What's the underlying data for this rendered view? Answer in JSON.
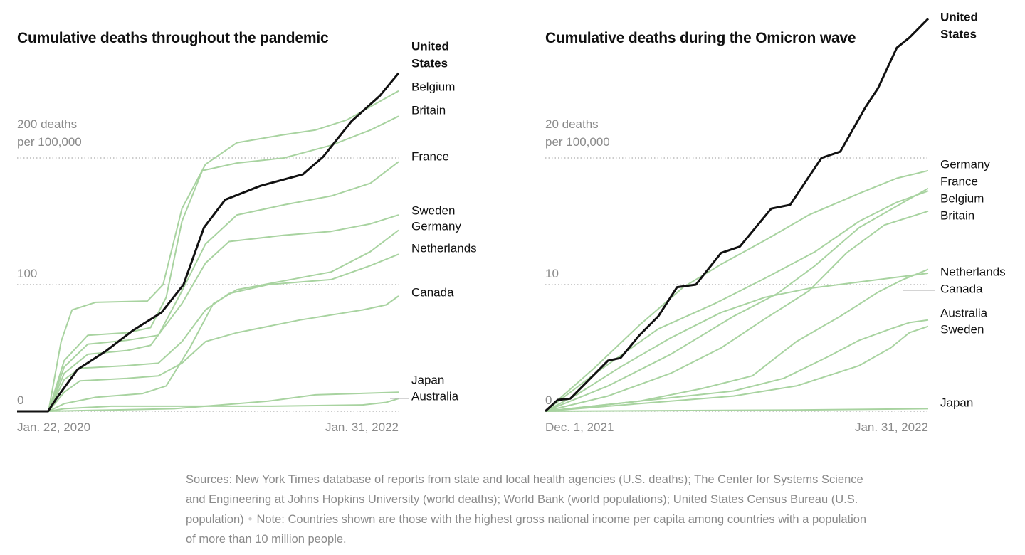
{
  "colors": {
    "highlight": "#111111",
    "others": "#a8d3a0",
    "grid": "#bbbbbb",
    "axis_text": "#8a8a8a"
  },
  "chart_data": [
    {
      "type": "line",
      "title": "Cumulative deaths throughout the pandemic",
      "ylabel": "deaths per 100,000",
      "x_unit": "months since Jan. 22, 2020",
      "xlim": [
        0,
        24.3
      ],
      "ylim": [
        0,
        270
      ],
      "x_tick_labels": [
        "Jan. 22, 2020",
        "Jan. 31, 2022"
      ],
      "y_ticks": [
        {
          "value": 0,
          "label": "0"
        },
        {
          "value": 100,
          "label": "100"
        },
        {
          "value": 200,
          "label": "200 deaths",
          "label2": "per 100,000"
        }
      ],
      "grid": "dotted horizontal",
      "series": [
        {
          "name": "Japan",
          "points": [
            [
              0,
              0
            ],
            [
              2,
              0
            ],
            [
              6,
              1
            ],
            [
              10,
              2
            ],
            [
              13,
              5
            ],
            [
              16,
              8
            ],
            [
              19,
              13
            ],
            [
              24.3,
              15
            ]
          ]
        },
        {
          "name": "Australia",
          "points": [
            [
              0,
              0
            ],
            [
              2,
              0
            ],
            [
              3,
              2
            ],
            [
              6,
              4
            ],
            [
              10,
              4
            ],
            [
              16,
              4
            ],
            [
              22,
              5
            ],
            [
              23.5,
              7
            ],
            [
              24.3,
              10
            ]
          ]
        },
        {
          "name": "Canada",
          "points": [
            [
              0,
              0
            ],
            [
              2,
              0
            ],
            [
              3,
              15
            ],
            [
              4,
              24
            ],
            [
              7,
              26
            ],
            [
              9,
              28
            ],
            [
              10.5,
              38
            ],
            [
              12,
              55
            ],
            [
              14,
              62
            ],
            [
              18,
              72
            ],
            [
              22,
              80
            ],
            [
              23.5,
              84
            ],
            [
              24.3,
              91
            ]
          ]
        },
        {
          "name": "Netherlands",
          "points": [
            [
              0,
              0
            ],
            [
              2,
              0
            ],
            [
              3,
              25
            ],
            [
              4,
              34
            ],
            [
              7,
              36
            ],
            [
              9,
              38
            ],
            [
              10.5,
              55
            ],
            [
              12,
              80
            ],
            [
              13.5,
              93
            ],
            [
              16,
              100
            ],
            [
              20,
              104
            ],
            [
              22.5,
              115
            ],
            [
              24.3,
              124
            ]
          ]
        },
        {
          "name": "Germany",
          "points": [
            [
              0,
              0
            ],
            [
              2,
              0
            ],
            [
              3,
              6
            ],
            [
              5,
              11
            ],
            [
              8,
              14
            ],
            [
              9.5,
              20
            ],
            [
              11,
              50
            ],
            [
              12.5,
              85
            ],
            [
              14,
              96
            ],
            [
              17,
              103
            ],
            [
              20,
              110
            ],
            [
              22.5,
              126
            ],
            [
              24.3,
              143
            ]
          ]
        },
        {
          "name": "Sweden",
          "points": [
            [
              0,
              0
            ],
            [
              2,
              0
            ],
            [
              3,
              30
            ],
            [
              4.5,
              45
            ],
            [
              7,
              48
            ],
            [
              8.5,
              52
            ],
            [
              10.5,
              85
            ],
            [
              12,
              117
            ],
            [
              13.5,
              134
            ],
            [
              17,
              139
            ],
            [
              20,
              142
            ],
            [
              22.5,
              148
            ],
            [
              24.3,
              155
            ]
          ]
        },
        {
          "name": "France",
          "points": [
            [
              0,
              0
            ],
            [
              2,
              0
            ],
            [
              3,
              35
            ],
            [
              4.5,
              53
            ],
            [
              7,
              56
            ],
            [
              9,
              60
            ],
            [
              10.5,
              95
            ],
            [
              12,
              132
            ],
            [
              14,
              155
            ],
            [
              17,
              163
            ],
            [
              20,
              170
            ],
            [
              22.5,
              180
            ],
            [
              24.3,
              197
            ]
          ]
        },
        {
          "name": "Britain",
          "points": [
            [
              0,
              0
            ],
            [
              2,
              0
            ],
            [
              3,
              40
            ],
            [
              4.5,
              60
            ],
            [
              7,
              62
            ],
            [
              8.5,
              66
            ],
            [
              9.5,
              90
            ],
            [
              10.5,
              150
            ],
            [
              11.8,
              190
            ],
            [
              14,
              196
            ],
            [
              17,
              200
            ],
            [
              20,
              210
            ],
            [
              22.5,
              222
            ],
            [
              24.3,
              233
            ]
          ]
        },
        {
          "name": "Belgium",
          "points": [
            [
              0,
              0
            ],
            [
              2,
              0
            ],
            [
              2.8,
              55
            ],
            [
              3.5,
              80
            ],
            [
              5,
              86
            ],
            [
              8.3,
              87
            ],
            [
              9.3,
              100
            ],
            [
              10.5,
              160
            ],
            [
              12,
              195
            ],
            [
              14,
              212
            ],
            [
              16.8,
              218
            ],
            [
              19,
              222
            ],
            [
              21,
              230
            ],
            [
              24.3,
              253
            ]
          ]
        },
        {
          "name": "United States",
          "highlight": true,
          "points": [
            [
              0,
              0
            ],
            [
              1.97,
              0
            ],
            [
              2.5,
              10
            ],
            [
              3.85,
              33
            ],
            [
              5.6,
              47
            ],
            [
              7.4,
              64
            ],
            [
              9.2,
              78
            ],
            [
              10.6,
              100
            ],
            [
              11.9,
              145
            ],
            [
              13.25,
              167
            ],
            [
              15.5,
              178
            ],
            [
              18.2,
              187
            ],
            [
              19.5,
              201
            ],
            [
              21.3,
              229
            ],
            [
              23.1,
              249
            ],
            [
              24.3,
              267
            ]
          ]
        }
      ]
    },
    {
      "type": "line",
      "title": "Cumulative deaths during the Omicron wave",
      "ylabel": "deaths per 100,000",
      "x_unit": "days since Dec. 1, 2021",
      "xlim": [
        0,
        61
      ],
      "ylim": [
        0,
        31
      ],
      "x_tick_labels": [
        "Dec. 1, 2021",
        "Jan. 31, 2022"
      ],
      "y_ticks": [
        {
          "value": 0,
          "label": "0"
        },
        {
          "value": 10,
          "label": "10"
        },
        {
          "value": 20,
          "label": "20 deaths",
          "label2": "per 100,000"
        }
      ],
      "grid": "dotted horizontal",
      "series": [
        {
          "name": "Japan",
          "points": [
            [
              0,
              0
            ],
            [
              20,
              0.05
            ],
            [
              40,
              0.1
            ],
            [
              61,
              0.2
            ]
          ]
        },
        {
          "name": "Sweden",
          "points": [
            [
              0,
              0
            ],
            [
              15,
              0.6
            ],
            [
              30,
              1.2
            ],
            [
              40,
              2
            ],
            [
              45,
              2.8
            ],
            [
              50,
              3.6
            ],
            [
              55,
              5
            ],
            [
              58,
              6.2
            ],
            [
              61,
              6.7
            ]
          ]
        },
        {
          "name": "Australia",
          "points": [
            [
              0,
              0
            ],
            [
              15,
              0.8
            ],
            [
              30,
              1.6
            ],
            [
              38,
              2.6
            ],
            [
              45,
              4.3
            ],
            [
              50,
              5.6
            ],
            [
              55,
              6.5
            ],
            [
              58,
              7
            ],
            [
              61,
              7.2
            ]
          ]
        },
        {
          "name": "Canada",
          "points": [
            [
              0,
              0
            ],
            [
              15,
              0.8
            ],
            [
              25,
              1.8
            ],
            [
              33,
              2.8
            ],
            [
              40,
              5.5
            ],
            [
              47,
              7.5
            ],
            [
              53,
              9.4
            ],
            [
              57,
              10.4
            ],
            [
              61,
              11.2
            ]
          ]
        },
        {
          "name": "Netherlands",
          "points": [
            [
              0,
              0
            ],
            [
              5,
              1.3
            ],
            [
              12,
              3.5
            ],
            [
              20,
              5.8
            ],
            [
              28,
              7.8
            ],
            [
              35,
              9
            ],
            [
              42,
              9.7
            ],
            [
              50,
              10.2
            ],
            [
              61,
              10.9
            ]
          ]
        },
        {
          "name": "Britain",
          "points": [
            [
              0,
              0
            ],
            [
              10,
              1.2
            ],
            [
              20,
              3
            ],
            [
              28,
              5
            ],
            [
              35,
              7.3
            ],
            [
              42,
              9.5
            ],
            [
              48,
              12.5
            ],
            [
              54,
              14.7
            ],
            [
              61,
              15.8
            ]
          ]
        },
        {
          "name": "Belgium",
          "points": [
            [
              0,
              0
            ],
            [
              10,
              2
            ],
            [
              20,
              4.5
            ],
            [
              30,
              7.5
            ],
            [
              37,
              9.3
            ],
            [
              43,
              11.5
            ],
            [
              50,
              14.5
            ],
            [
              56,
              16.2
            ],
            [
              61,
              17.6
            ]
          ]
        },
        {
          "name": "France",
          "points": [
            [
              0,
              0
            ],
            [
              8,
              3
            ],
            [
              18,
              6.5
            ],
            [
              27,
              8.5
            ],
            [
              35,
              10.5
            ],
            [
              43,
              12.6
            ],
            [
              50,
              15
            ],
            [
              56,
              16.5
            ],
            [
              61,
              17.4
            ]
          ]
        },
        {
          "name": "Germany",
          "points": [
            [
              0,
              0
            ],
            [
              8,
              3.5
            ],
            [
              15,
              6.8
            ],
            [
              22,
              9.8
            ],
            [
              28,
              11.6
            ],
            [
              35,
              13.5
            ],
            [
              42,
              15.5
            ],
            [
              50,
              17.2
            ],
            [
              56,
              18.4
            ],
            [
              61,
              19
            ]
          ]
        },
        {
          "name": "United States",
          "highlight": true,
          "points": [
            [
              0,
              0
            ],
            [
              2,
              0.9
            ],
            [
              4,
              1
            ],
            [
              7,
              2.5
            ],
            [
              10,
              4
            ],
            [
              12,
              4.2
            ],
            [
              15,
              6
            ],
            [
              18,
              7.5
            ],
            [
              21,
              9.8
            ],
            [
              24,
              10
            ],
            [
              28,
              12.5
            ],
            [
              31,
              13
            ],
            [
              36,
              16
            ],
            [
              39,
              16.3
            ],
            [
              44,
              20
            ],
            [
              47,
              20.5
            ],
            [
              51,
              24
            ],
            [
              53,
              25.5
            ],
            [
              56,
              28.7
            ],
            [
              58,
              29.5
            ],
            [
              61,
              31
            ]
          ]
        }
      ]
    }
  ],
  "footnote": {
    "sources": "Sources: New York Times database of reports from state and local health agencies (U.S. deaths); The Center for Systems Science and Engineering at Johns Hopkins University (world deaths); World Bank (world populations); United States Census Bureau (U.S. population)",
    "separator": "•",
    "note": "Note: Countries shown are those with the highest gross national income per capita among countries with a population of more than 10 million people."
  }
}
